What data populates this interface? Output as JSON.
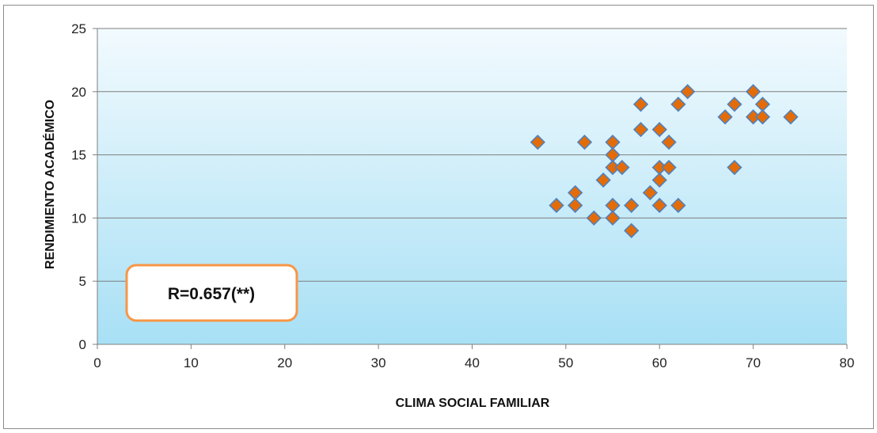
{
  "chart_data": {
    "type": "scatter",
    "xlabel": "CLIMA SOCIAL FAMILIAR",
    "ylabel": "RENDIMIENTO ACADÉMICO",
    "xlim": [
      0,
      80
    ],
    "ylim": [
      0,
      25
    ],
    "x_ticks": [
      0,
      10,
      20,
      30,
      40,
      50,
      60,
      70,
      80
    ],
    "y_ticks": [
      0,
      5,
      10,
      15,
      20,
      25
    ],
    "grid": "horizontal",
    "legend": "none",
    "annotation": "R=0.657(**)",
    "colors": {
      "marker_fill": "#E36C09",
      "marker_stroke": "#4F81BD",
      "plot_bg_top": "#F2FAFE",
      "plot_bg_bottom": "#A8E0F5",
      "annotation_border": "#F79646"
    },
    "points": [
      {
        "x": 47,
        "y": 16
      },
      {
        "x": 49,
        "y": 11
      },
      {
        "x": 51,
        "y": 12
      },
      {
        "x": 51,
        "y": 11
      },
      {
        "x": 52,
        "y": 16
      },
      {
        "x": 53,
        "y": 10
      },
      {
        "x": 54,
        "y": 13
      },
      {
        "x": 55,
        "y": 16
      },
      {
        "x": 55,
        "y": 15
      },
      {
        "x": 55,
        "y": 14
      },
      {
        "x": 55,
        "y": 11
      },
      {
        "x": 55,
        "y": 10
      },
      {
        "x": 56,
        "y": 14
      },
      {
        "x": 57,
        "y": 11
      },
      {
        "x": 57,
        "y": 9
      },
      {
        "x": 58,
        "y": 19
      },
      {
        "x": 58,
        "y": 17
      },
      {
        "x": 59,
        "y": 12
      },
      {
        "x": 60,
        "y": 17
      },
      {
        "x": 60,
        "y": 14
      },
      {
        "x": 60,
        "y": 13
      },
      {
        "x": 60,
        "y": 11
      },
      {
        "x": 61,
        "y": 16
      },
      {
        "x": 61,
        "y": 14
      },
      {
        "x": 62,
        "y": 19
      },
      {
        "x": 62,
        "y": 11
      },
      {
        "x": 63,
        "y": 20
      },
      {
        "x": 67,
        "y": 18
      },
      {
        "x": 68,
        "y": 19
      },
      {
        "x": 68,
        "y": 14
      },
      {
        "x": 70,
        "y": 20
      },
      {
        "x": 70,
        "y": 18
      },
      {
        "x": 71,
        "y": 19
      },
      {
        "x": 71,
        "y": 18
      },
      {
        "x": 74,
        "y": 18
      }
    ]
  }
}
